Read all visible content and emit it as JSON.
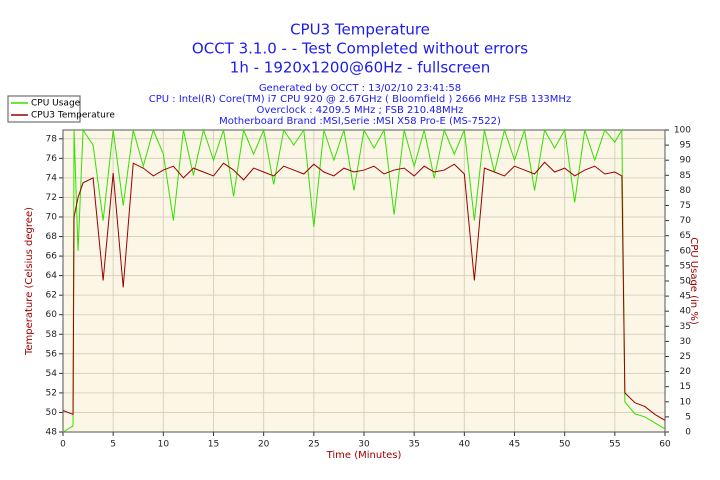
{
  "chart_data": {
    "type": "line",
    "title": "CPU3 Temperature",
    "title_lines": [
      "OCCT 3.1.0 -  - Test Completed without errors",
      "1h - 1920x1200@60Hz - fullscreen"
    ],
    "subtitle_lines": [
      "Generated by OCCT : 13/02/10 23:41:58",
      "CPU : Intel(R) Core(TM) i7 CPU 920 @ 2.67GHz ( Bloomfield ) 2666 MHz FSB 133MHz",
      "Overclock : 4209.5 MHz ; FSB 210.48MHz",
      "Motherboard Brand :MSI,Serie :MSI X58 Pro-E (MS-7522)"
    ],
    "x_label": "Time (Minutes)",
    "y_label": "Temperature (Celsius degree)",
    "y2_label": "CPU Usage (in %)",
    "xlim": [
      0,
      60
    ],
    "xticks": [
      0,
      5,
      10,
      15,
      20,
      25,
      30,
      35,
      40,
      45,
      50,
      55,
      60
    ],
    "ylim": [
      48,
      78.9
    ],
    "yticks": [
      48,
      50,
      52,
      54,
      56,
      58,
      60,
      62,
      64,
      66,
      68,
      70,
      72,
      74,
      76,
      78
    ],
    "y2lim": [
      0,
      100
    ],
    "y2ticks": [
      0,
      5,
      10,
      15,
      20,
      25,
      30,
      35,
      40,
      45,
      50,
      55,
      60,
      65,
      70,
      75,
      80,
      85,
      90,
      95,
      100
    ],
    "grid": true,
    "legend": "top-left",
    "x": [
      0,
      1,
      1.1,
      1.5,
      2,
      3,
      4,
      5,
      6,
      7,
      8,
      9,
      10,
      11,
      12,
      13,
      14,
      15,
      16,
      17,
      18,
      19,
      20,
      21,
      22,
      23,
      24,
      25,
      26,
      27,
      28,
      29,
      30,
      31,
      32,
      33,
      34,
      35,
      36,
      37,
      38,
      39,
      40,
      41,
      42,
      43,
      44,
      45,
      46,
      47,
      48,
      49,
      50,
      51,
      52,
      53,
      54,
      55,
      55.7,
      56,
      57,
      58,
      59,
      60
    ],
    "series": [
      {
        "name": "CPU Usage",
        "color": "#33e000",
        "axis": "y2",
        "values": [
          0,
          2,
          100,
          60,
          100,
          95,
          70,
          100,
          75,
          100,
          88,
          100,
          92,
          70,
          100,
          85,
          100,
          90,
          100,
          78,
          100,
          92,
          100,
          82,
          100,
          95,
          100,
          68,
          100,
          90,
          100,
          80,
          100,
          94,
          100,
          72,
          100,
          88,
          100,
          84,
          100,
          92,
          100,
          70,
          100,
          86,
          100,
          90,
          100,
          80,
          100,
          94,
          100,
          76,
          100,
          90,
          100,
          96,
          100,
          10,
          6,
          5,
          3,
          1
        ]
      },
      {
        "name": "CPU3 Temperature",
        "color": "#990000",
        "values": [
          50.2,
          49.8,
          70,
          72,
          73.5,
          74,
          63.5,
          74.5,
          62.8,
          75.5,
          75,
          74.2,
          74.8,
          75.2,
          74,
          75,
          74.6,
          74.2,
          75.5,
          74.8,
          73.8,
          75,
          74.6,
          74.2,
          75.2,
          74.8,
          74.4,
          75.4,
          74.6,
          74.2,
          75,
          74.6,
          74.8,
          75.2,
          74.4,
          74.8,
          75,
          74.2,
          75.2,
          74.6,
          74.8,
          75.4,
          74.4,
          63.5,
          75,
          74.6,
          74.2,
          75.2,
          74.8,
          74.4,
          75.6,
          74.6,
          75,
          74.2,
          74.8,
          75.2,
          74.4,
          74.6,
          74.2,
          52,
          51,
          50.6,
          49.8,
          49.2
        ]
      }
    ]
  }
}
